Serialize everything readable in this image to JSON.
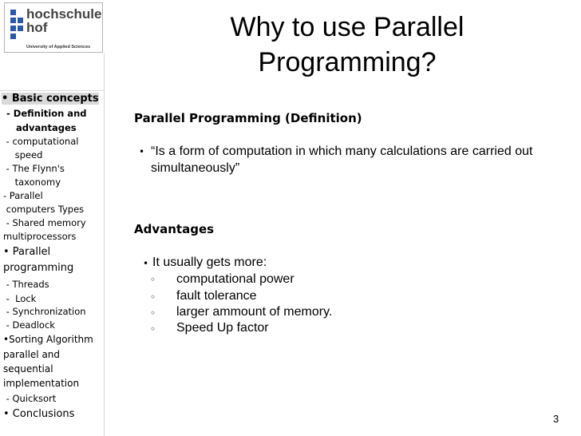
{
  "logo": {
    "line1": "hochschule",
    "line2": "hof",
    "subtitle": "University of Applied Sciences"
  },
  "sidebar": {
    "items": [
      {
        "label": "• Basic concepts"
      },
      {
        "label": " - Definition and"
      },
      {
        "label": "    advantages"
      },
      {
        "label": " - computational"
      },
      {
        "label": "    speed"
      },
      {
        "label": " - The Flynn's"
      },
      {
        "label": "    taxonomy"
      },
      {
        "label": "- Parallel"
      },
      {
        "label": " computers Types"
      },
      {
        "label": " - Shared memory"
      },
      {
        "label": "multiprocessors"
      },
      {
        "label": "• Parallel"
      },
      {
        "label": "programming"
      },
      {
        "label": " - Threads"
      },
      {
        "label": " -  Lock"
      },
      {
        "label": " - Synchronization"
      },
      {
        "label": " - Deadlock"
      },
      {
        "label": "•Sorting Algorithm"
      },
      {
        "label": "parallel and"
      },
      {
        "label": "sequential"
      },
      {
        "label": "implementation"
      },
      {
        "label": " - Quicksort"
      },
      {
        "label": "• Conclusions"
      }
    ]
  },
  "slide": {
    "title_line1": "Why to use Parallel",
    "title_line2": "Programming?",
    "definition_heading": "Parallel Programming (Definition)",
    "definition_bullet": "•",
    "definition_line1": "“Is a form of computation in which many calculations are carried out",
    "definition_line2": "simultaneously”",
    "advantages_heading": "Advantages",
    "advantages_bullet": "•",
    "advantages_intro": "It usually gets more:",
    "sub_bullet": "◦",
    "advantages_list": [
      "computational power",
      "fault tolerance",
      "larger ammount of memory.",
      "Speed Up factor"
    ],
    "page_number": "3"
  }
}
